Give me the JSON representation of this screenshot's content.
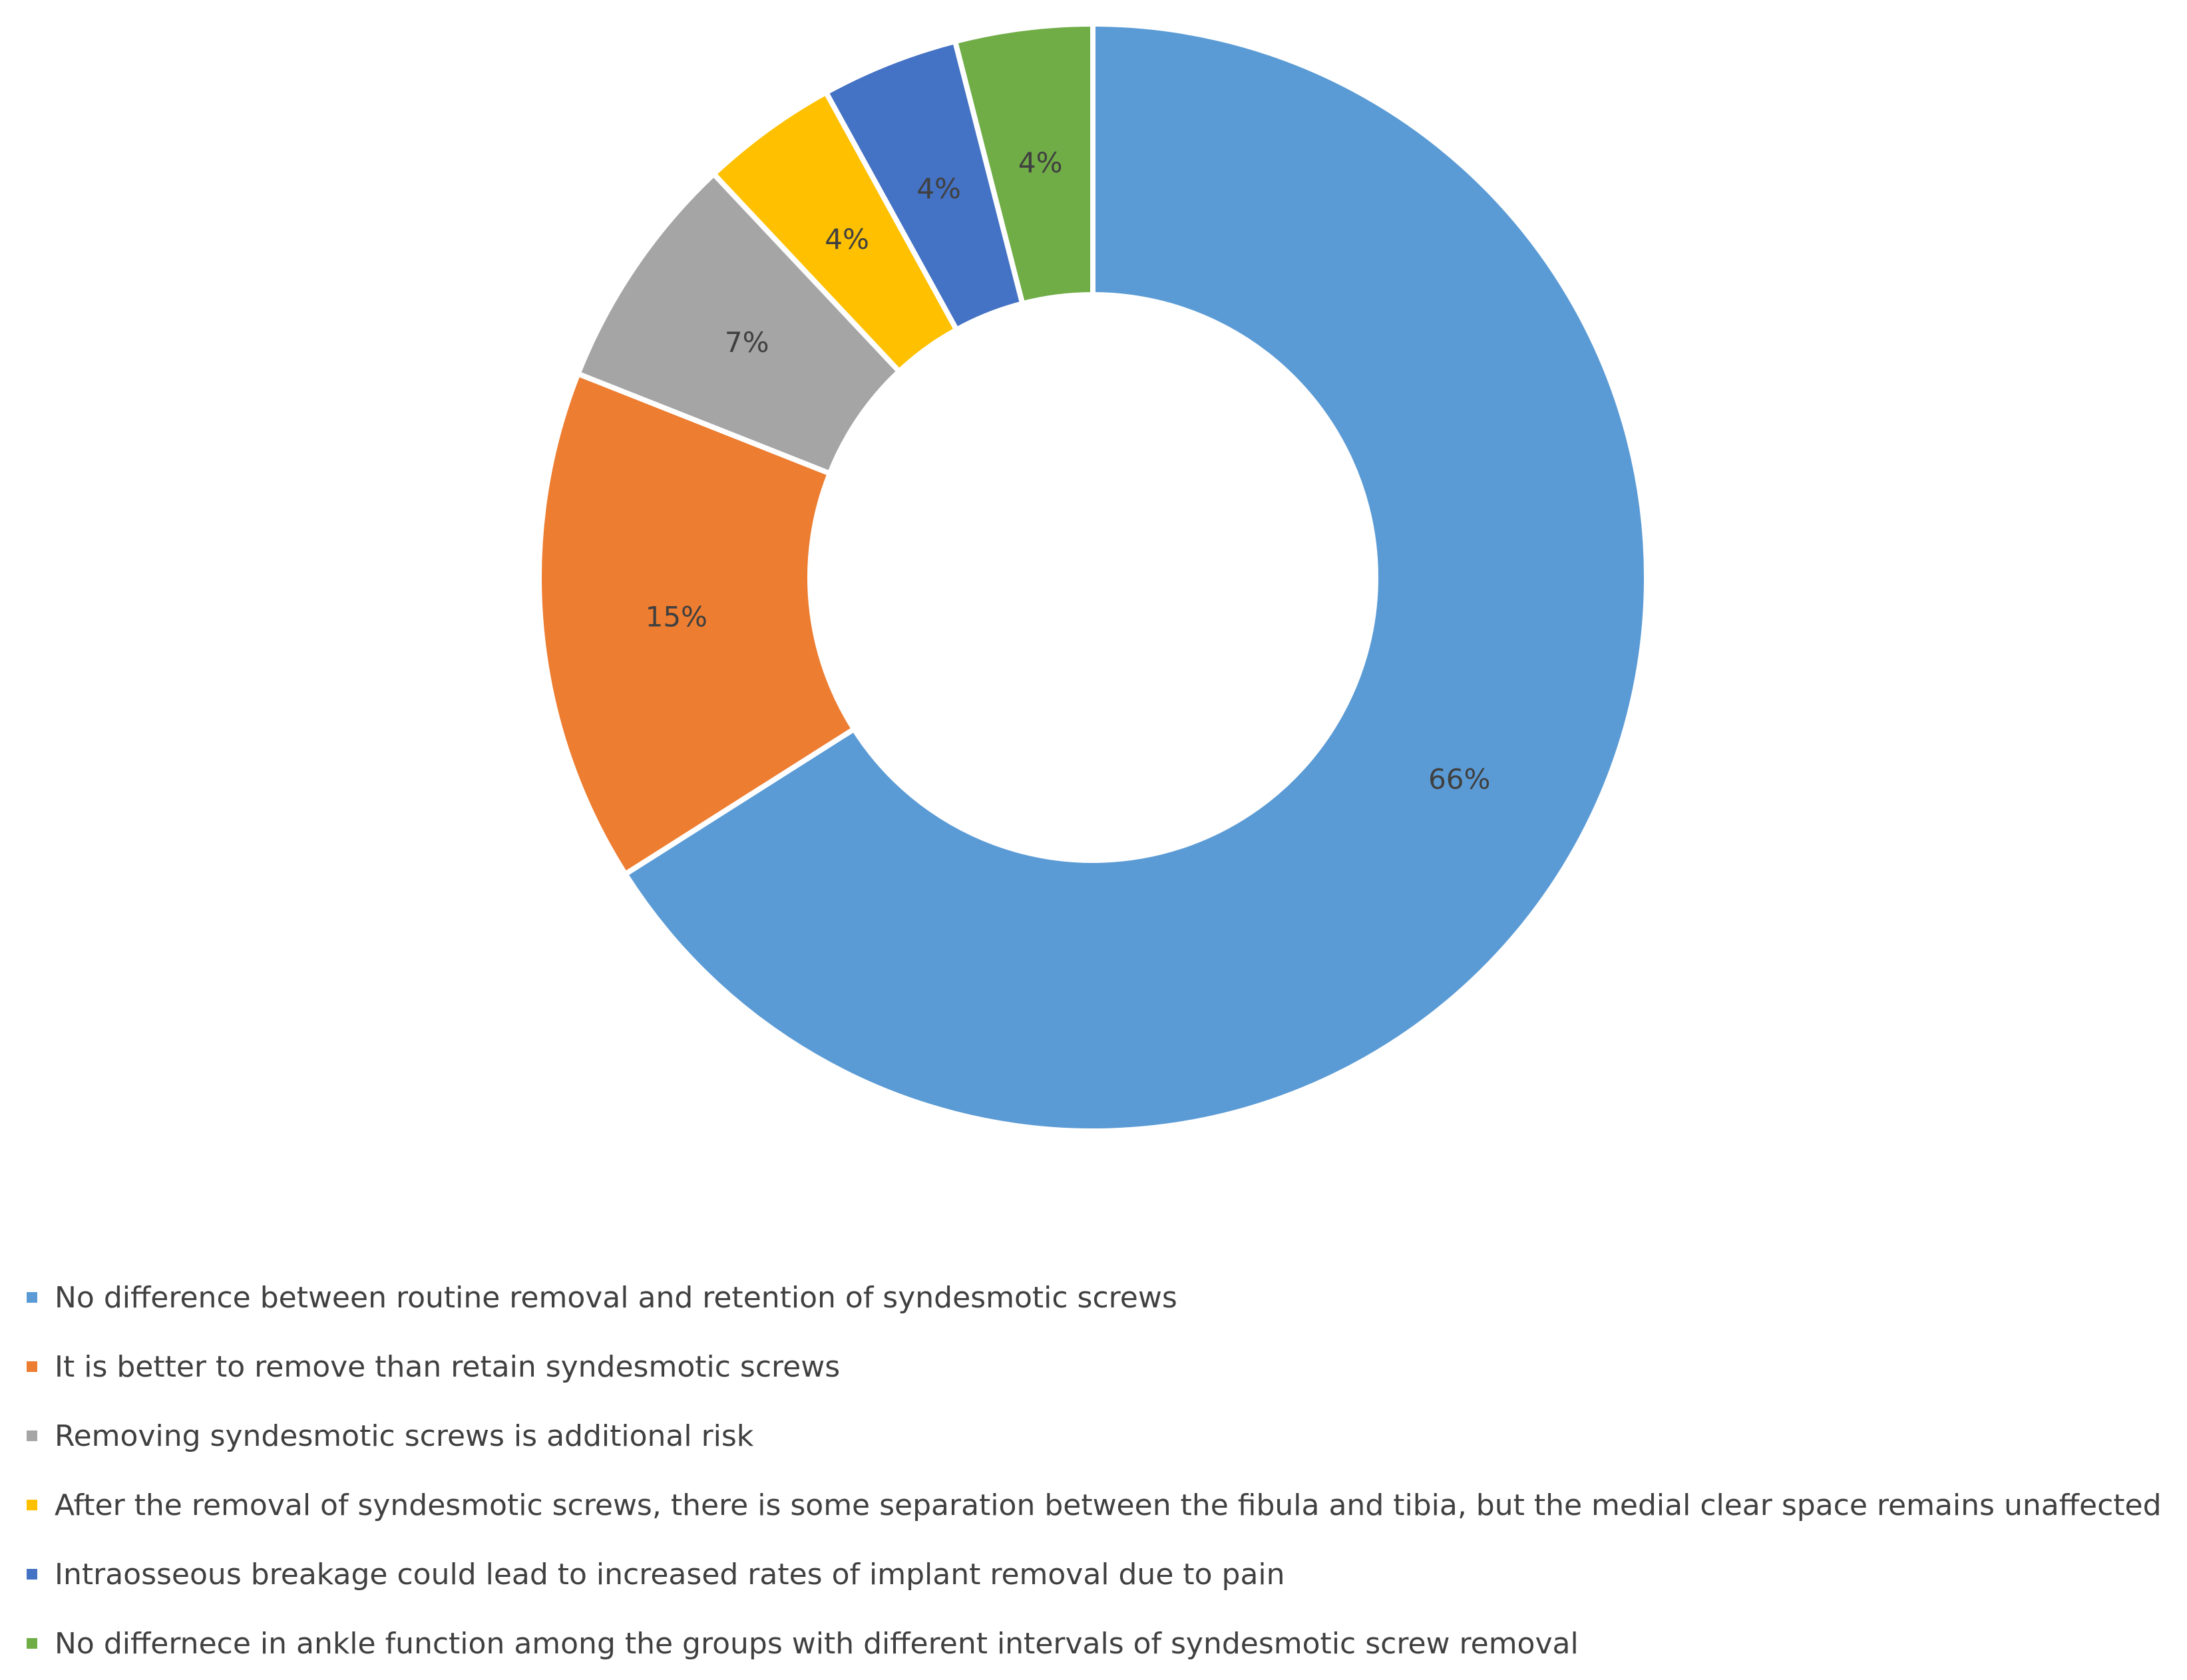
{
  "chart_data": {
    "type": "pie",
    "donut": true,
    "legend_position": "bottom",
    "slices": [
      {
        "label": "No difference between routine removal and retention of syndesmotic screws",
        "value": 66,
        "value_label": "66%",
        "color": "#5B9BD5"
      },
      {
        "label": "It is better to remove than retain syndesmotic screws",
        "value": 15,
        "value_label": "15%",
        "color": "#ED7D31"
      },
      {
        "label": "Removing syndesmotic screws is additional risk",
        "value": 7,
        "value_label": "7%",
        "color": "#A5A5A5"
      },
      {
        "label": "After the removal of syndesmotic screws, there is some separation between the fibula and tibia, but the medial clear space remains unaffected",
        "value": 4,
        "value_label": "4%",
        "color": "#FFC000"
      },
      {
        "label": "Intraosseous breakage could lead to increased rates of implant removal due to pain",
        "value": 4,
        "value_label": "4%",
        "color": "#4472C4"
      },
      {
        "label": "No differnece in ankle function among the groups with different intervals of syndesmotic screw removal",
        "value": 4,
        "value_label": "4%",
        "color": "#70AD47"
      }
    ]
  }
}
